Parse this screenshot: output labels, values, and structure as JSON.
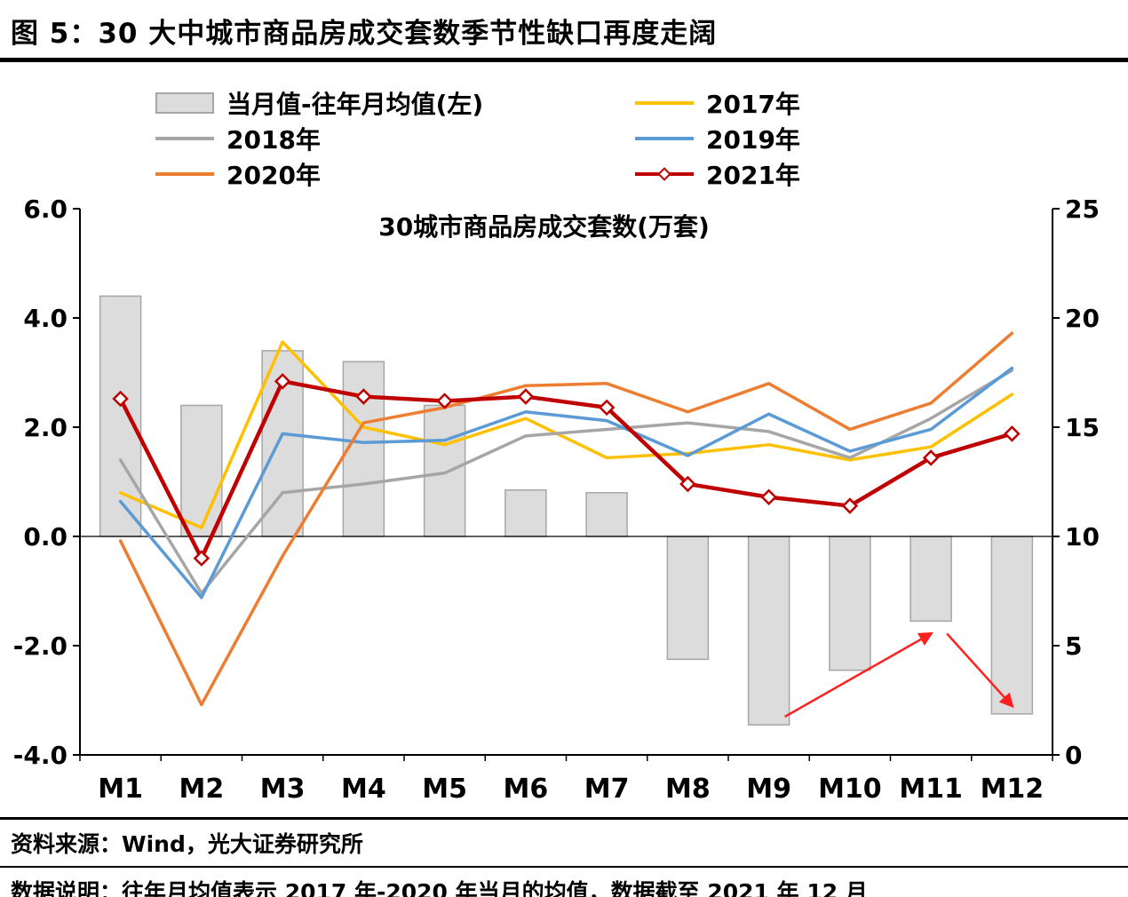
{
  "header": {
    "title": "图 5：30 大中城市商品房成交套数季节性缺口再度走阔"
  },
  "legend": [
    {
      "label": "当月值-往年月均值(左)",
      "type": "bar",
      "color": "#dcdcdc",
      "border": "#a6a6a6"
    },
    {
      "label": "2017年",
      "type": "line",
      "color": "#ffc000"
    },
    {
      "label": "2018年",
      "type": "line",
      "color": "#a6a6a6"
    },
    {
      "label": "2019年",
      "type": "line",
      "color": "#5b9bd5"
    },
    {
      "label": "2020年",
      "type": "line",
      "color": "#ed7d31"
    },
    {
      "label": "2021年",
      "type": "line",
      "marker": "diamond",
      "color": "#c00000"
    }
  ],
  "chart_data": {
    "type": "bar+line",
    "subtitle": "30城市商品房成交套数(万套)",
    "categories": [
      "M1",
      "M2",
      "M3",
      "M4",
      "M5",
      "M6",
      "M7",
      "M8",
      "M9",
      "M10",
      "M11",
      "M12"
    ],
    "left_axis": {
      "min": -4,
      "max": 6,
      "ticks": [
        {
          "label": "6.0",
          "value": 6
        },
        {
          "label": "4.0",
          "value": 4
        },
        {
          "label": "2.0",
          "value": 2
        },
        {
          "label": "0.0",
          "value": 0
        },
        {
          "label": "-2.0",
          "value": -2
        },
        {
          "label": "-4.0",
          "value": -4
        }
      ]
    },
    "right_axis": {
      "min": 0,
      "max": 25,
      "ticks": [
        {
          "label": "25",
          "value": 25
        },
        {
          "label": "20",
          "value": 20
        },
        {
          "label": "15",
          "value": 15
        },
        {
          "label": "10",
          "value": 10
        },
        {
          "label": "5",
          "value": 5
        },
        {
          "label": "0",
          "value": 0
        }
      ]
    },
    "bar_series": {
      "name": "当月值-往年月均值(左)",
      "axis": "left",
      "color": "#dcdcdc",
      "border": "#a6a6a6",
      "values": [
        4.4,
        2.4,
        3.4,
        3.2,
        2.4,
        0.85,
        0.8,
        -2.25,
        -3.45,
        -2.45,
        -1.55,
        -3.25
      ]
    },
    "line_series": [
      {
        "name": "2017年",
        "axis": "right",
        "color": "#ffc000",
        "values": [
          12.0,
          10.4,
          18.9,
          15.0,
          14.2,
          15.4,
          13.6,
          13.8,
          14.2,
          13.5,
          14.1,
          16.5
        ]
      },
      {
        "name": "2018年",
        "axis": "right",
        "color": "#a6a6a6",
        "values": [
          13.5,
          7.4,
          12.0,
          12.4,
          12.9,
          14.6,
          14.9,
          15.2,
          14.8,
          13.6,
          15.4,
          17.6
        ]
      },
      {
        "name": "2019年",
        "axis": "right",
        "color": "#5b9bd5",
        "values": [
          11.6,
          7.2,
          14.7,
          14.3,
          14.4,
          15.7,
          15.3,
          13.7,
          15.6,
          13.9,
          14.9,
          17.7
        ]
      },
      {
        "name": "2020年",
        "axis": "right",
        "color": "#ed7d31",
        "values": [
          9.8,
          2.3,
          9.1,
          15.2,
          15.9,
          16.9,
          17.0,
          15.7,
          17.0,
          14.9,
          16.1,
          19.3
        ]
      },
      {
        "name": "2021年",
        "axis": "right",
        "color": "#c00000",
        "marker": "diamond",
        "width": 4.5,
        "values": [
          16.3,
          9.0,
          17.1,
          16.4,
          16.2,
          16.4,
          15.9,
          12.4,
          11.8,
          11.4,
          13.6,
          14.7
        ]
      }
    ],
    "annotation_color": "#ff2020",
    "annotation_arrows": [
      {
        "from_cat": 8,
        "from_val": -3.3,
        "to_cat": 10,
        "to_val": -1.78
      },
      {
        "from_cat": 10,
        "from_val": -1.78,
        "to_cat": 11,
        "to_val": -3.1
      }
    ]
  },
  "footer": {
    "source": "资料来源：Wind，光大证券研究所",
    "note": "数据说明：往年月均值表示 2017 年-2020 年当月的均值，数据截至 2021 年 12 月"
  }
}
